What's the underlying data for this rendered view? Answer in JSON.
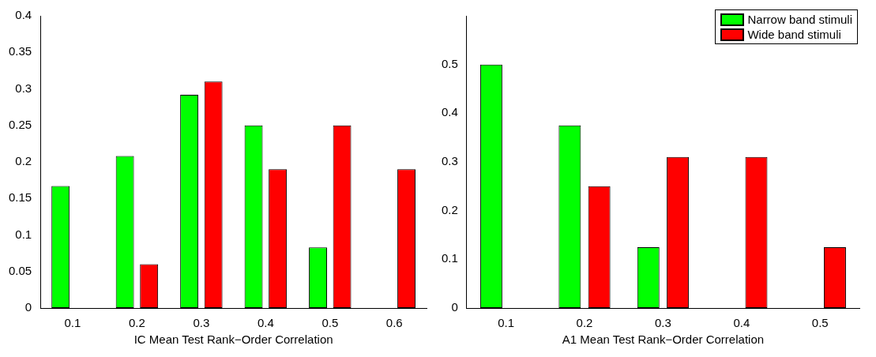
{
  "chart_data": [
    {
      "type": "bar",
      "xlabel": "IC Mean Test Rank−Order Correlation",
      "categories": [
        "0.1",
        "0.2",
        "0.3",
        "0.4",
        "0.5",
        "0.6"
      ],
      "ylim": [
        0,
        0.4
      ],
      "yticks": [
        0,
        0.05,
        0.1,
        0.15,
        0.2,
        0.25,
        0.3,
        0.35,
        0.4
      ],
      "grid": false,
      "legend": false,
      "series": [
        {
          "color": "#00ff00",
          "values": [
            0.167,
            0.208,
            0.292,
            0.25,
            0.083,
            0
          ]
        },
        {
          "color": "#ff0000",
          "values": [
            0,
            0.06,
            0.31,
            0.19,
            0.25,
            0.19
          ]
        }
      ]
    },
    {
      "type": "bar",
      "xlabel": "A1 Mean Test Rank−Order Correlation",
      "categories": [
        "0.1",
        "0.2",
        "0.3",
        "0.4",
        "0.5"
      ],
      "ylim": [
        0,
        0.6
      ],
      "yticks": [
        0,
        0.1,
        0.2,
        0.3,
        0.4,
        0.5
      ],
      "grid": false,
      "legend": "top right",
      "series": [
        {
          "name": "Narrow band stimuli",
          "color": "#00ff00",
          "values": [
            0.5,
            0.375,
            0.125,
            0,
            0
          ]
        },
        {
          "name": "Wide band stimuli",
          "color": "#ff0000",
          "values": [
            0,
            0.25,
            0.31,
            0.31,
            0.125
          ]
        }
      ]
    }
  ]
}
